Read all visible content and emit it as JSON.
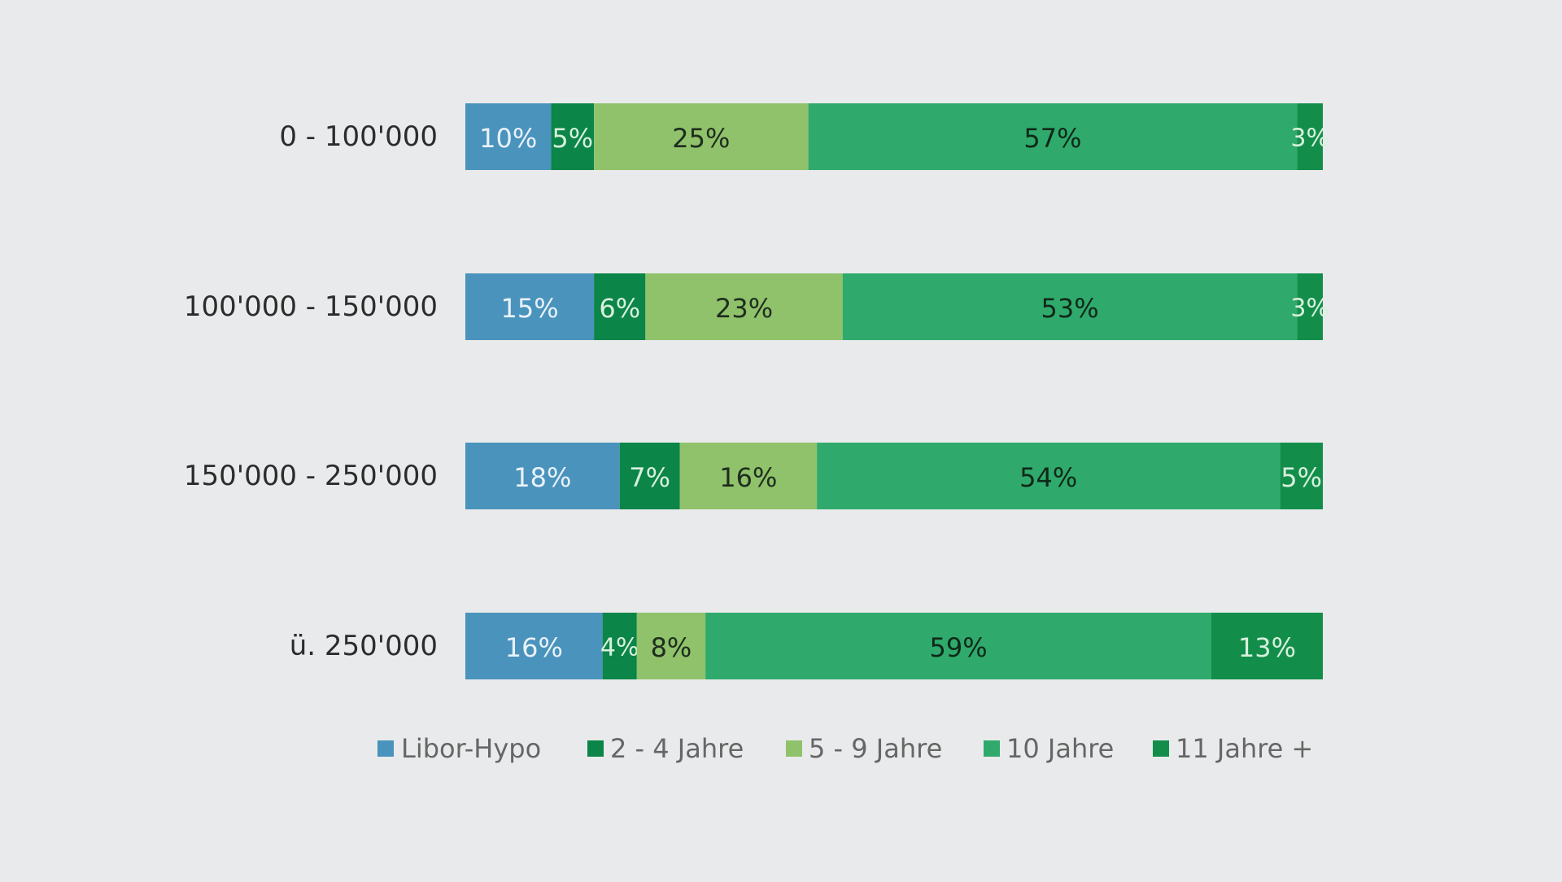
{
  "chart_data": {
    "type": "bar",
    "orientation": "horizontal",
    "stacked": true,
    "normalized": true,
    "title": "",
    "xlabel": "",
    "ylabel": "",
    "grid": false,
    "legend_position": "bottom-center",
    "categories": [
      "0 - 100'000",
      "100'000 - 150'000",
      "150'000 - 250'000",
      "ü. 250'000"
    ],
    "series": [
      {
        "name": "Libor-Hypo",
        "color": "#4a93bd",
        "label_color": "#e9f2f9",
        "values": [
          10,
          15,
          18,
          16
        ],
        "labels": [
          "10%",
          "15%",
          "18%",
          "16%"
        ]
      },
      {
        "name": "2 - 4 Jahre",
        "color": "#0b8548",
        "label_color": "#d8f0dd",
        "values": [
          5,
          6,
          7,
          4
        ],
        "labels": [
          "5%",
          "6%",
          "7%",
          "4%"
        ]
      },
      {
        "name": "5 - 9 Jahre",
        "color": "#8fc26a",
        "label_color": "#1f2d1f",
        "values": [
          25,
          23,
          16,
          8
        ],
        "labels": [
          "25%",
          "23%",
          "16%",
          "8%"
        ]
      },
      {
        "name": "10 Jahre",
        "color": "#2faa6c",
        "label_color": "#0f2818",
        "values": [
          57,
          53,
          54,
          59
        ],
        "labels": [
          "57%",
          "53%",
          "54%",
          "59%"
        ]
      },
      {
        "name": "11 Jahre +",
        "color": "#128e4a",
        "label_color": "#d8f0dd",
        "values": [
          3,
          3,
          5,
          13
        ],
        "labels": [
          "3%",
          "3%",
          "5%",
          "13%"
        ]
      }
    ],
    "colors": {
      "background": "#e9eaeb",
      "category_text": "#2c2c2c",
      "legend_text": "#666666"
    }
  }
}
